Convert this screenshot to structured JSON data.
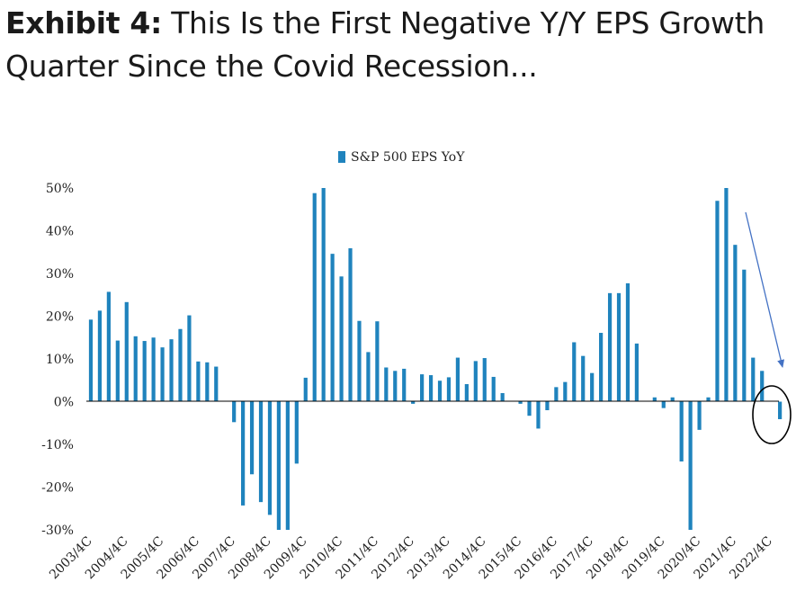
{
  "title": {
    "lead": "Exhibit 4:",
    "text": "This Is the First Negative Y/Y EPS Growth Quarter Since the Covid Recession..."
  },
  "colors": {
    "bar": "#1f83bd",
    "arrow": "#4472c4",
    "circle": "#000000"
  },
  "chart_data": {
    "type": "bar",
    "series": [
      {
        "name": "S&P 500 EPS YoY"
      }
    ],
    "legend_position": "top-center",
    "grid": false,
    "ylim": [
      -30,
      50
    ],
    "yticks": [
      "50%",
      "40%",
      "30%",
      "20%",
      "10%",
      "0%",
      "-10%",
      "-20%",
      "-30%"
    ],
    "xtick_labels": [
      "2003/4C",
      "2004/4C",
      "2005/4C",
      "2006/4C",
      "2007/4C",
      "2008/4C",
      "2009/4C",
      "2010/4C",
      "2011/4C",
      "2012/4C",
      "2013/4C",
      "2014/4C",
      "2015/4C",
      "2016/4C",
      "2017/4C",
      "2018/4C",
      "2019/4C",
      "2020/4C",
      "2021/4C",
      "2022/4C"
    ],
    "values": [
      19.2,
      21.3,
      25.7,
      14.3,
      23.3,
      15.3,
      14.2,
      15.0,
      12.7,
      14.6,
      17.0,
      20.2,
      9.4,
      9.2,
      8.2,
      0,
      -4.8,
      -24.3,
      -17.0,
      -23.5,
      -26.5,
      -30.0,
      -30.0,
      -14.5,
      5.6,
      48.8,
      50.0,
      34.6,
      29.3,
      35.9,
      18.9,
      11.6,
      18.8,
      8.0,
      7.2,
      7.7,
      -0.5,
      6.4,
      6.2,
      4.9,
      5.7,
      10.3,
      4.1,
      9.5,
      10.2,
      5.8,
      2.0,
      0,
      -0.5,
      -3.3,
      -6.3,
      -2.0,
      3.4,
      4.6,
      13.9,
      10.7,
      6.7,
      16.1,
      25.4,
      25.4,
      27.7,
      13.6,
      0,
      1.0,
      -1.5,
      1.0,
      -14.0,
      -30.0,
      -6.6,
      1.0,
      47.0,
      50.0,
      36.7,
      30.9,
      10.3,
      7.2,
      0,
      -4.1
    ]
  }
}
